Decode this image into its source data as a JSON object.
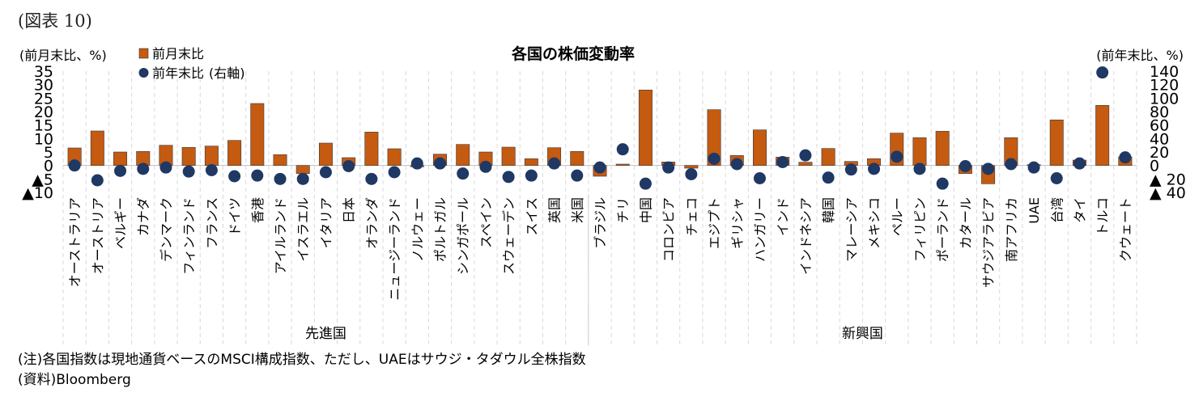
{
  "figure_label": "(図表 10)",
  "notes": [
    "(注)各国指数は現地通貨ベースのMSCI構成指数、ただし、UAEはサウジ・タダウル全株指数",
    "(資料)Bloomberg"
  ],
  "chart_data": {
    "type": "bar",
    "title": "各国の株価変動率",
    "left_unit_label": "(前月末比、%)",
    "right_unit_label": "(前年末比、%)",
    "categories": [
      "オーストラリア",
      "オーストリア",
      "ベルギー",
      "カナダ",
      "デンマーク",
      "フィンランド",
      "フランス",
      "ドイツ",
      "香港",
      "アイルランド",
      "イスラエル",
      "イタリア",
      "日本",
      "オランダ",
      "ニュージーランド",
      "ノルウェー",
      "ポルトガル",
      "シンガポール",
      "スペイン",
      "スウェーデン",
      "スイス",
      "英国",
      "米国",
      "ブラジル",
      "チリ",
      "中国",
      "コロンビア",
      "チェコ",
      "エジプト",
      "ギリシャ",
      "ハンガリー",
      "インド",
      "インドネシア",
      "韓国",
      "マレーシア",
      "メキシコ",
      "ペルー",
      "フィリピン",
      "ポーランド",
      "カタール",
      "サウジアラビア",
      "南アフリカ",
      "UAE",
      "台湾",
      "タイ",
      "トルコ",
      "クウェート"
    ],
    "groups": [
      {
        "name": "先進国",
        "count": 23
      },
      {
        "name": "新興国",
        "count": 24
      }
    ],
    "series": [
      {
        "name": "前月末比",
        "axis": "left",
        "kind": "bar",
        "color": "#C55A11",
        "values": [
          6.5,
          12.8,
          5,
          5.2,
          7.5,
          6.7,
          7.2,
          9.3,
          23,
          4,
          -3,
          8.3,
          2.9,
          12.4,
          6.2,
          -0.5,
          4.2,
          7.8,
          5,
          6.8,
          2.5,
          6.6,
          5.2,
          -4,
          0.5,
          28,
          1.3,
          -1,
          20.7,
          3.7,
          13.2,
          3.1,
          1.2,
          6.3,
          1.5,
          2.5,
          12,
          10.3,
          12.7,
          -3,
          -6.8,
          10.3,
          0.3,
          16.9,
          2,
          22.3,
          3.2
        ]
      },
      {
        "name": "前年末比",
        "axis": "right",
        "kind": "dot",
        "color": "#1F3864",
        "values": [
          0,
          -22,
          -8,
          -5,
          -3,
          -9,
          -7,
          -16,
          -15,
          -20,
          -20,
          -10,
          -1,
          -20,
          -10,
          3,
          3,
          -12,
          -2,
          -17,
          -15,
          3,
          -15,
          -3,
          24,
          -27,
          -3,
          -13,
          10,
          2,
          -19,
          5,
          15,
          -18,
          -6,
          -5,
          13,
          -5,
          -27,
          -1,
          -5,
          2,
          -3,
          -19,
          3,
          138,
          12
        ]
      }
    ],
    "left_axis": {
      "min": -10,
      "max": 35,
      "ticks": [
        35,
        30,
        25,
        20,
        15,
        10,
        5,
        0,
        -5,
        -10
      ],
      "tick_labels": [
        "35",
        "30",
        "25",
        "20",
        "15",
        "10",
        "5",
        "0",
        "▲5",
        "▲10"
      ]
    },
    "right_axis": {
      "min": -40,
      "max": 140,
      "ticks": [
        140,
        120,
        100,
        80,
        60,
        40,
        20,
        0,
        -20,
        -40
      ],
      "tick_labels": [
        "140",
        "120",
        "100",
        "80",
        "60",
        "40",
        "20",
        "0",
        "▲ 20",
        "▲ 40"
      ]
    },
    "legend": {
      "placement": "top-left"
    },
    "grid": "vertical-dashed"
  }
}
